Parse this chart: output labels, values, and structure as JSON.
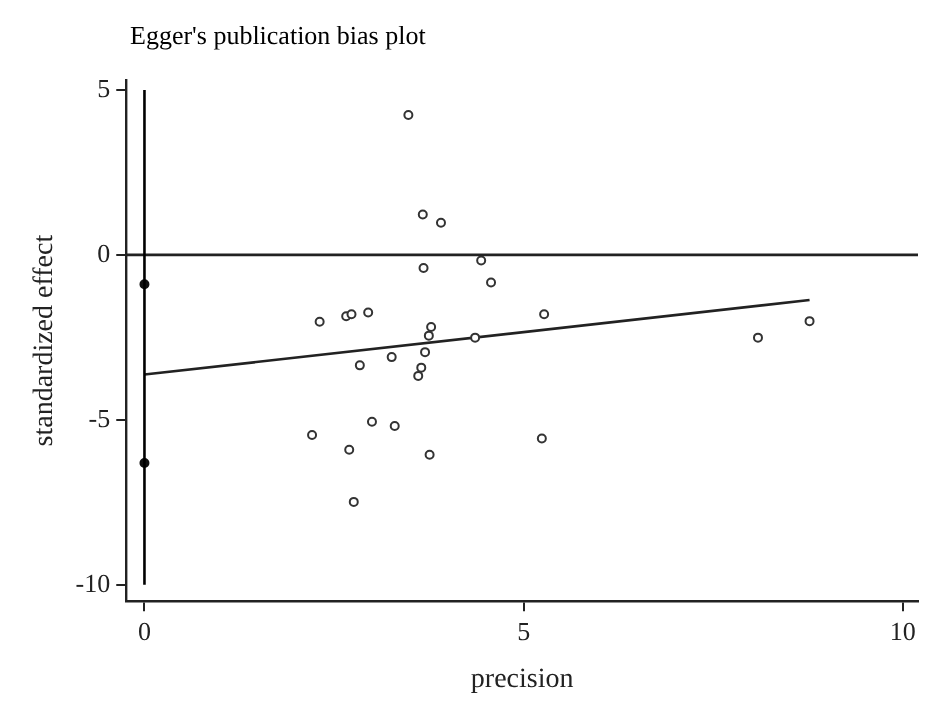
{
  "chart_data": {
    "type": "scatter",
    "title": "Egger's publication bias plot",
    "xlabel": "precision",
    "ylabel": "standardized effect",
    "xlim": [
      -0.24,
      10.2
    ],
    "xticks": [
      0,
      5,
      10
    ],
    "ylim": [
      -10.5,
      5.3
    ],
    "yticks": [
      -10,
      -5,
      0,
      5
    ],
    "grid": false,
    "legend": false,
    "marker": "circle",
    "series": [
      {
        "color": "#333333",
        "x": [
          3.48,
          3.67,
          3.91,
          4.44,
          3.68,
          4.57,
          2.31,
          2.66,
          2.73,
          2.95,
          3.78,
          3.75,
          4.36,
          3.7,
          3.26,
          2.84,
          3.65,
          3.61,
          3.0,
          3.3,
          2.21,
          2.7,
          3.76,
          2.76,
          5.27,
          5.24,
          8.09,
          8.77
        ],
        "values": [
          4.24,
          1.22,
          0.97,
          -0.17,
          -0.4,
          -0.84,
          -2.03,
          -1.86,
          -1.8,
          -1.75,
          -2.19,
          -2.45,
          -2.51,
          -2.95,
          -3.1,
          -3.35,
          -3.42,
          -3.67,
          -5.06,
          -5.19,
          -5.46,
          -5.91,
          -6.06,
          -7.49,
          -1.8,
          -5.57,
          -2.51,
          -2.01
        ]
      },
      {
        "color": "#111111",
        "x": [
          0,
          0
        ],
        "values": [
          -0.89,
          -6.31
        ]
      },
      {
        "type": "line",
        "marker": "none",
        "color": "#222222",
        "x": [
          0,
          8.77
        ],
        "values": [
          -3.63,
          -1.37
        ]
      }
    ],
    "ref_lines": [
      {
        "axis": "y",
        "value": 0,
        "color": "#222222"
      },
      {
        "axis": "x",
        "value": 0,
        "color": "#000000"
      }
    ]
  }
}
